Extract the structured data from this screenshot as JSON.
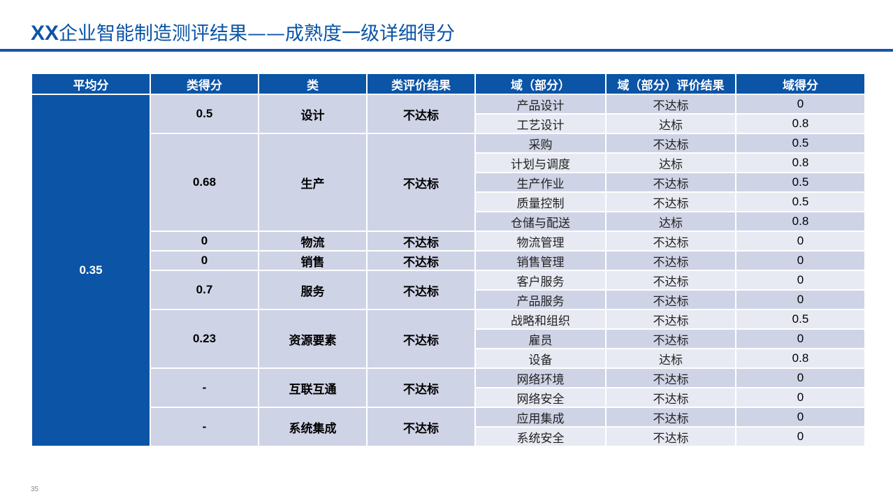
{
  "title": {
    "brand": "XX",
    "text": "企业智能制造测评结果——成熟度一级详细得分"
  },
  "headers": [
    "平均分",
    "类得分",
    "类",
    "类评价结果",
    "域（部分）",
    "域（部分）评价结果",
    "域得分"
  ],
  "average": "0.35",
  "categories": [
    {
      "score": "0.5",
      "name": "设计",
      "result": "不达标",
      "domains": [
        {
          "name": "产品设计",
          "result": "不达标",
          "score": "0"
        },
        {
          "name": "工艺设计",
          "result": "达标",
          "score": "0.8"
        }
      ]
    },
    {
      "score": "0.68",
      "name": "生产",
      "result": "不达标",
      "domains": [
        {
          "name": "采购",
          "result": "不达标",
          "score": "0.5"
        },
        {
          "name": "计划与调度",
          "result": "达标",
          "score": "0.8"
        },
        {
          "name": "生产作业",
          "result": "不达标",
          "score": "0.5"
        },
        {
          "name": "质量控制",
          "result": "不达标",
          "score": "0.5"
        },
        {
          "name": "仓储与配送",
          "result": "达标",
          "score": "0.8"
        }
      ]
    },
    {
      "score": "0",
      "name": "物流",
      "result": "不达标",
      "domains": [
        {
          "name": "物流管理",
          "result": "不达标",
          "score": "0"
        }
      ]
    },
    {
      "score": "0",
      "name": "销售",
      "result": "不达标",
      "domains": [
        {
          "name": "销售管理",
          "result": "不达标",
          "score": "0"
        }
      ]
    },
    {
      "score": "0.7",
      "name": "服务",
      "result": "不达标",
      "domains": [
        {
          "name": "客户服务",
          "result": "不达标",
          "score": "0"
        },
        {
          "name": "产品服务",
          "result": "不达标",
          "score": "0"
        }
      ]
    },
    {
      "score": "0.23",
      "name": "资源要素",
      "result": "不达标",
      "domains": [
        {
          "name": "战略和组织",
          "result": "不达标",
          "score": "0.5"
        },
        {
          "name": "雇员",
          "result": "不达标",
          "score": "0"
        },
        {
          "name": "设备",
          "result": "达标",
          "score": "0.8"
        }
      ]
    },
    {
      "score": "-",
      "name": "互联互通",
      "result": "不达标",
      "domains": [
        {
          "name": "网络环境",
          "result": "不达标",
          "score": "0"
        },
        {
          "name": "网络安全",
          "result": "不达标",
          "score": "0"
        }
      ]
    },
    {
      "score": "-",
      "name": "系统集成",
      "result": "不达标",
      "domains": [
        {
          "name": "应用集成",
          "result": "不达标",
          "score": "0"
        },
        {
          "name": "系统安全",
          "result": "不达标",
          "score": "0"
        }
      ]
    }
  ],
  "page_number": "35",
  "colors": {
    "primary": "#0b54a6",
    "rule": "#1457a8",
    "band_dark": "#cfd3e6",
    "band_light": "#e8eaf3"
  }
}
